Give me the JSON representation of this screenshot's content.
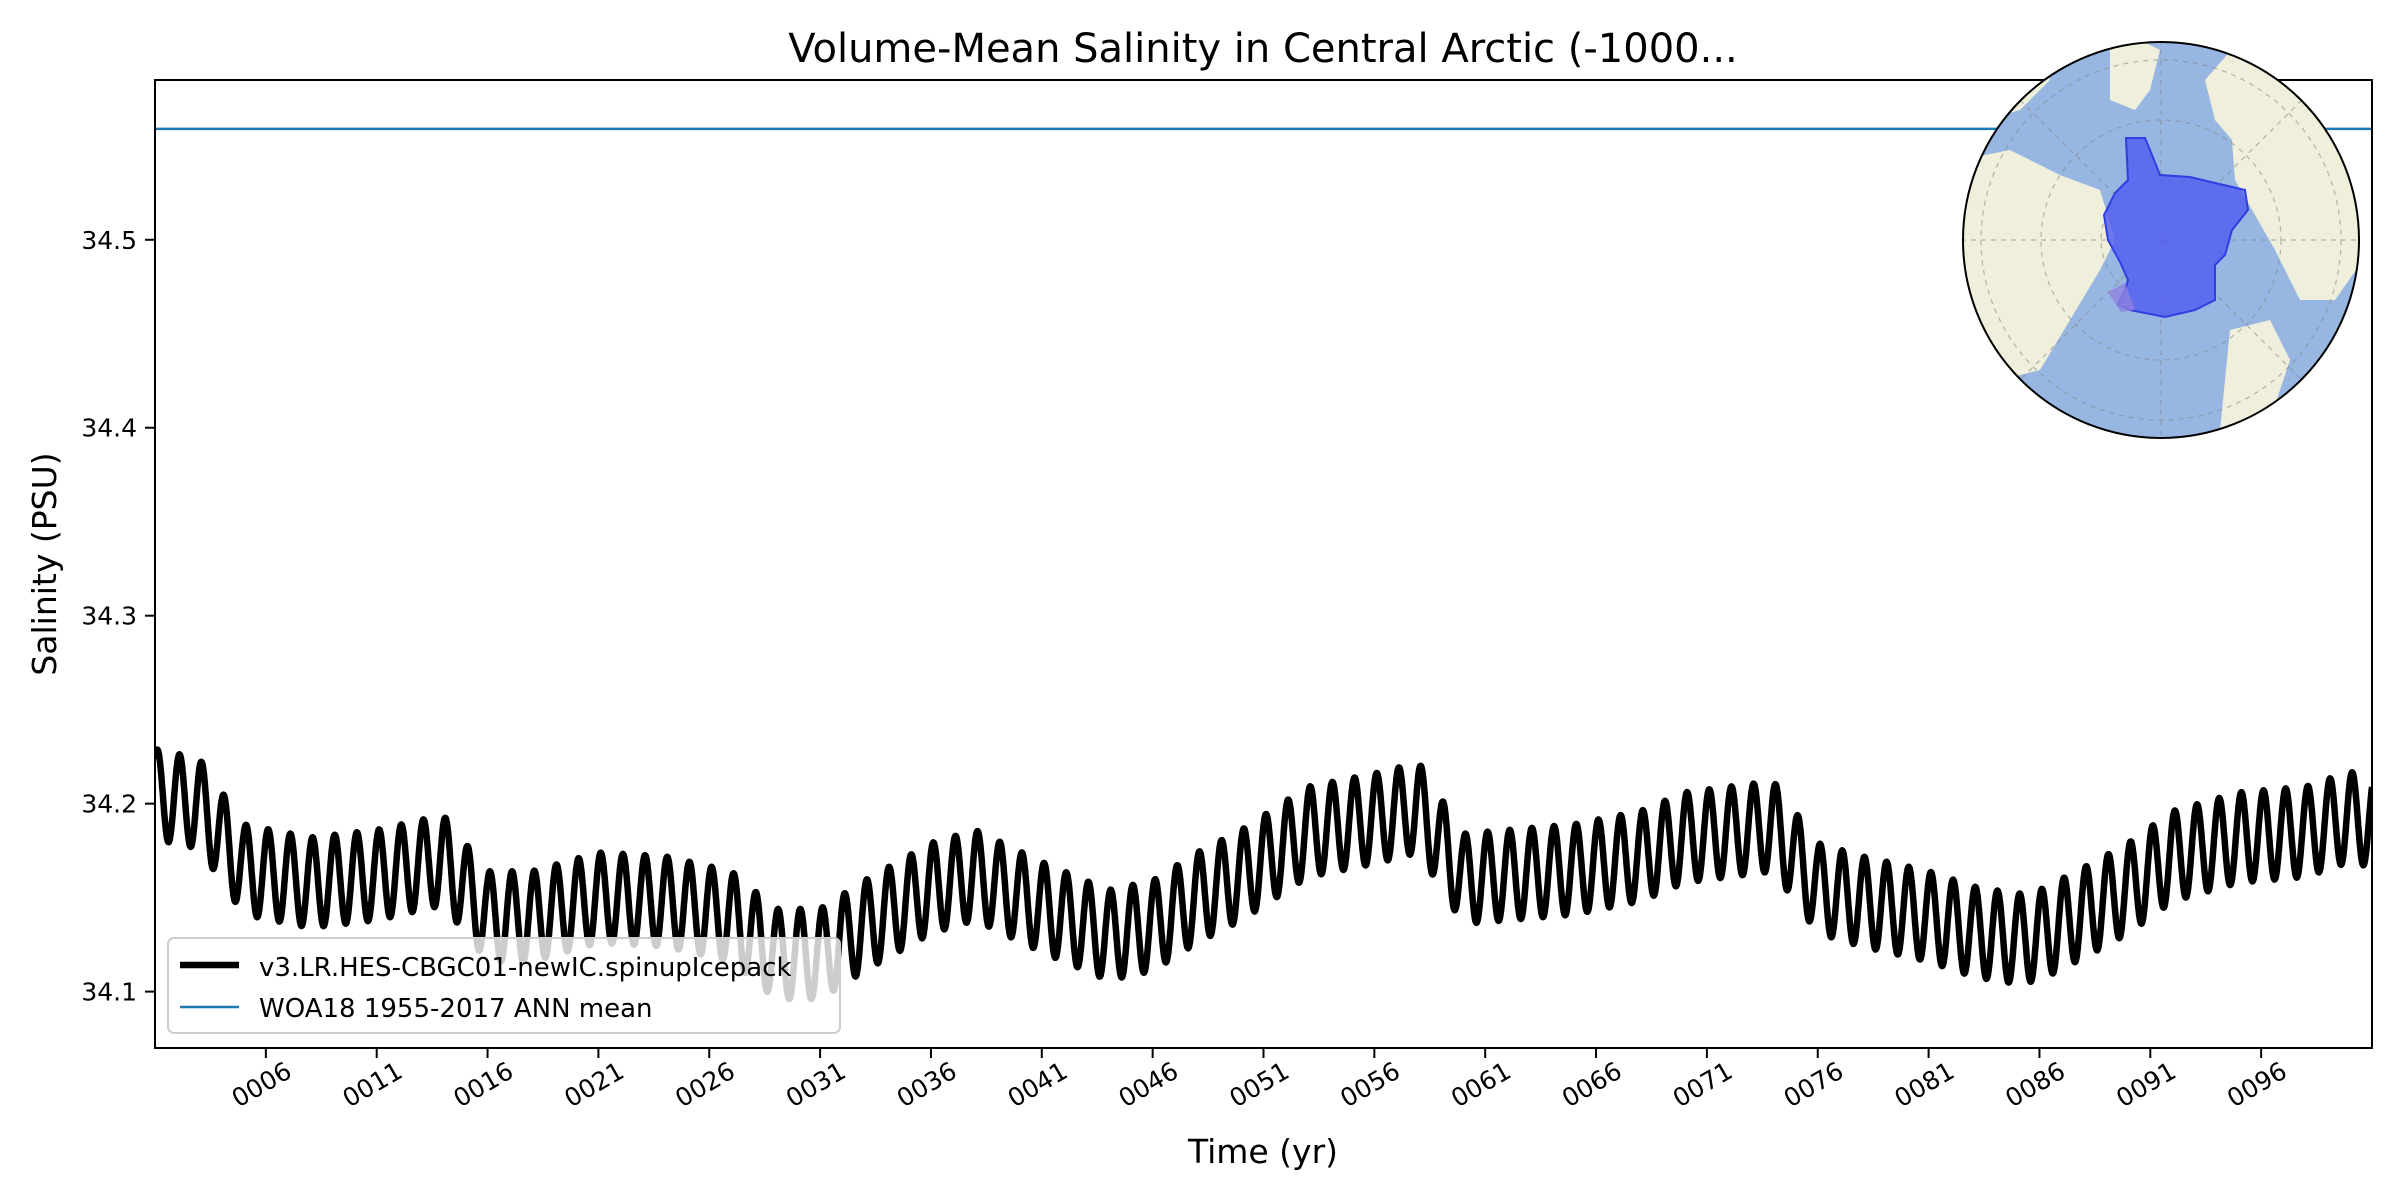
{
  "chart_data": {
    "type": "line",
    "title": "Volume-Mean Salinity in Central Arctic (-1000...",
    "xlabel": "Time (yr)",
    "ylabel": "Salinity (PSU)",
    "xlim": [
      1,
      101
    ],
    "ylim": [
      34.07,
      34.585
    ],
    "xticks": [
      6,
      11,
      16,
      21,
      26,
      31,
      36,
      41,
      46,
      51,
      56,
      61,
      66,
      71,
      76,
      81,
      86,
      91,
      96
    ],
    "xtick_labels": [
      "0006",
      "0011",
      "0016",
      "0021",
      "0026",
      "0031",
      "0036",
      "0041",
      "0046",
      "0051",
      "0056",
      "0061",
      "0066",
      "0071",
      "0076",
      "0081",
      "0086",
      "0091",
      "0096"
    ],
    "yticks": [
      34.1,
      34.2,
      34.3,
      34.4,
      34.5
    ],
    "ytick_labels": [
      "34.1",
      "34.2",
      "34.3",
      "34.4",
      "34.5"
    ],
    "seasonal_amplitude": 0.024,
    "series": [
      {
        "name": "v3.LR.HES-CBGC01-newIC.spinupIcepack",
        "color": "#000000",
        "annual_mean": {
          "x": [
            1,
            3,
            5,
            8,
            11,
            14,
            16,
            18,
            21,
            24,
            27,
            29,
            31,
            33,
            36,
            38,
            41,
            44,
            46,
            48,
            50,
            53,
            56,
            58,
            60,
            62,
            65,
            68,
            70,
            72,
            74,
            76,
            78,
            81,
            83,
            85,
            86,
            88,
            90,
            92,
            95,
            98,
            100,
            101
          ],
          "y": [
            34.205,
            34.2,
            34.165,
            34.158,
            34.162,
            34.17,
            34.14,
            34.14,
            34.15,
            34.148,
            34.14,
            34.12,
            34.12,
            34.135,
            34.155,
            34.162,
            34.145,
            34.13,
            34.135,
            34.15,
            34.162,
            34.185,
            34.192,
            34.198,
            34.16,
            34.162,
            34.165,
            34.172,
            34.182,
            34.185,
            34.188,
            34.155,
            34.148,
            34.14,
            34.132,
            34.128,
            34.13,
            34.142,
            34.155,
            34.172,
            34.182,
            34.185,
            34.193,
            34.19
          ]
        }
      },
      {
        "name": "WOA18 1955-2017 ANN mean",
        "color": "#1f77b4",
        "y": 34.559
      }
    ],
    "legend_placement": "lower-left",
    "inset": "Arctic polar map showing the central Arctic region",
    "grid": false
  },
  "colors": {
    "model_line": "#000000",
    "reference_line": "#1f77b4",
    "ocean": "#97b6e1",
    "land": "#efefdb",
    "region_fill": "#4f5bf1"
  }
}
